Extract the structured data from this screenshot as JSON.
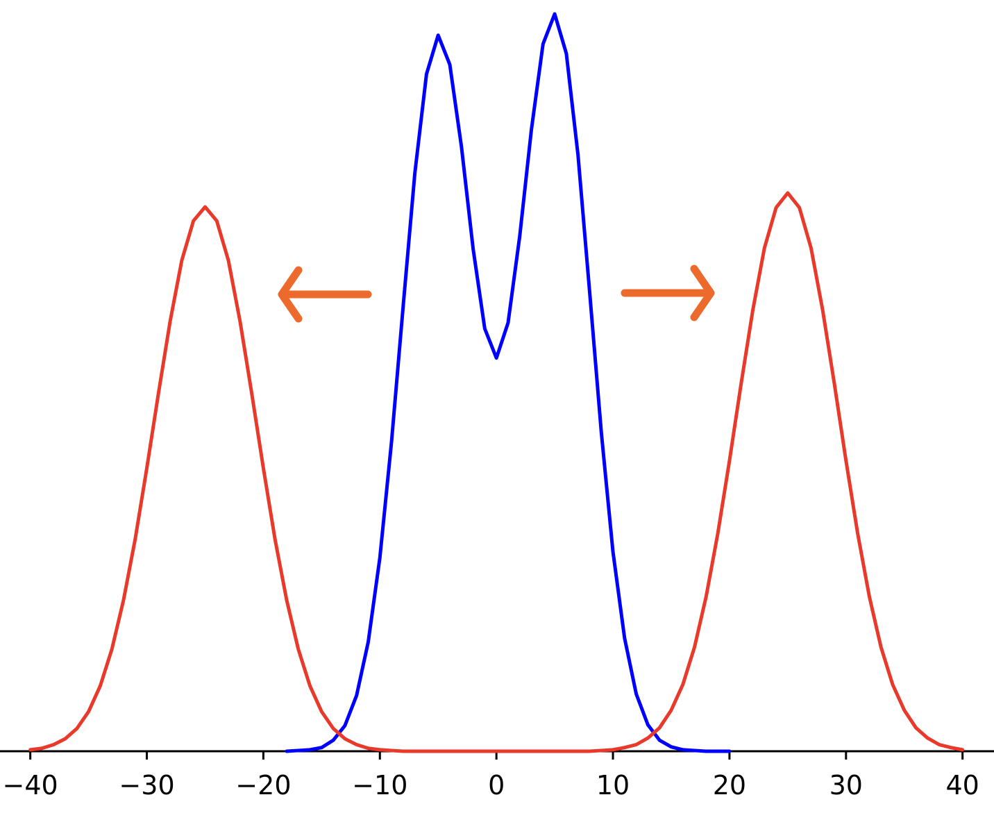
{
  "chart_data": {
    "type": "line",
    "xlim": [
      -42.6,
      42.7
    ],
    "ylim": [
      0,
      1.024
    ],
    "xticks": [
      {
        "value": -40,
        "label": "−40"
      },
      {
        "value": -30,
        "label": "−30"
      },
      {
        "value": -20,
        "label": "−20"
      },
      {
        "value": -10,
        "label": "−10"
      },
      0,
      10,
      20,
      30,
      40
    ],
    "series": [
      {
        "color": "#0000ff",
        "x": [
          -18,
          -17,
          -16,
          -15,
          -14,
          -13,
          -12,
          -11,
          -10,
          -9,
          -8,
          -7,
          -6,
          -5,
          -4,
          -3,
          -2,
          -1,
          0,
          1,
          2,
          3,
          4,
          5,
          6,
          7,
          8,
          9,
          10,
          11,
          12,
          13,
          14,
          15,
          16,
          17,
          18,
          19,
          20
        ],
        "values": [
          0,
          0.001,
          0.002,
          0.005,
          0.015,
          0.035,
          0.076,
          0.149,
          0.264,
          0.422,
          0.607,
          0.788,
          0.923,
          0.976,
          0.936,
          0.824,
          0.685,
          0.576,
          0.536,
          0.584,
          0.702,
          0.847,
          0.964,
          1.005,
          0.951,
          0.813,
          0.626,
          0.435,
          0.272,
          0.154,
          0.078,
          0.036,
          0.015,
          0.006,
          0.002,
          0.001,
          0,
          0,
          0
        ]
      },
      {
        "color": "#e8392a",
        "x": [
          -40,
          -39,
          -38,
          -37,
          -36,
          -35,
          -34,
          -33,
          -32,
          -31,
          -30,
          -29,
          -28,
          -27,
          -26,
          -25,
          -24,
          -23,
          -22,
          -21,
          -20,
          -19,
          -18,
          -17,
          -16,
          -15,
          -14,
          -13,
          -12,
          -11,
          -10,
          -9,
          -8,
          -7,
          -6,
          -5,
          -4,
          -3,
          -2,
          -1,
          0,
          1,
          2,
          3,
          4,
          5,
          6,
          7,
          8,
          9,
          10,
          11,
          12,
          13,
          14,
          15,
          16,
          17,
          18,
          19,
          20,
          21,
          22,
          23,
          24,
          25,
          26,
          27,
          28,
          29,
          30,
          31,
          32,
          33,
          34,
          35,
          36,
          37,
          38,
          39,
          40
        ],
        "values": [
          0.002,
          0.004,
          0.009,
          0.017,
          0.031,
          0.054,
          0.089,
          0.139,
          0.206,
          0.289,
          0.386,
          0.488,
          0.586,
          0.669,
          0.723,
          0.742,
          0.723,
          0.669,
          0.586,
          0.488,
          0.386,
          0.289,
          0.206,
          0.139,
          0.089,
          0.054,
          0.031,
          0.017,
          0.009,
          0.004,
          0.002,
          0.001,
          0,
          0,
          0,
          0,
          0,
          0,
          0,
          0,
          0,
          0,
          0,
          0,
          0,
          0,
          0,
          0,
          0,
          0.001,
          0.002,
          0.005,
          0.009,
          0.018,
          0.032,
          0.056,
          0.091,
          0.142,
          0.211,
          0.297,
          0.396,
          0.501,
          0.601,
          0.686,
          0.741,
          0.761,
          0.741,
          0.686,
          0.601,
          0.501,
          0.396,
          0.297,
          0.211,
          0.142,
          0.091,
          0.056,
          0.032,
          0.018,
          0.009,
          0.005,
          0.002
        ]
      }
    ]
  }
}
